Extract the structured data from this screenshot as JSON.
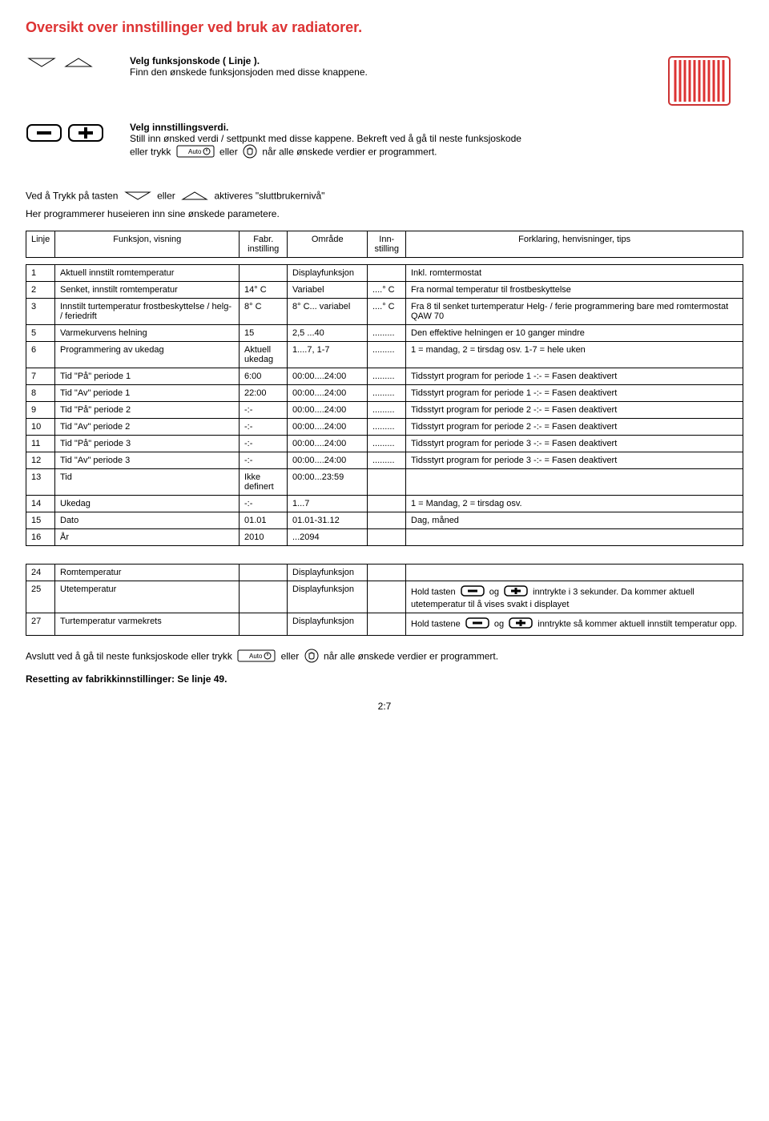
{
  "title": "Oversikt over innstillinger ved bruk av radiatorer.",
  "intro1": {
    "line1": "Velg funksjonskode ( Linje ).",
    "line2": "Finn den ønskede funksjonsjoden med disse knappene."
  },
  "intro2": {
    "l1": "Velg innstillingsverdi.",
    "l2a": "Still inn ønsked verdi / settpunkt med disse kappene. Bekreft ved å gå til neste funksjoskode",
    "l2b": "eller trykk",
    "auto": "Auto",
    "l2c": "eller",
    "l2d": "når alle ønskede verdier er programmert."
  },
  "activation": {
    "p1": "Ved å Trykk på tasten",
    "p2": "eller",
    "p3": "aktiveres \"sluttbrukernivå\""
  },
  "programmer_intro": "Her programmerer huseieren inn sine ønskede parametere.",
  "headers": {
    "linje": "Linje",
    "funksjon": "Funksjon, visning",
    "fabr": "Fabr. instilling",
    "omrade": "Område",
    "inn": "Inn- stilling",
    "forklaring": "Forklaring, henvisninger, tips"
  },
  "rows1": [
    {
      "linje": "1",
      "funksjon": "Aktuell innstilt romtemperatur",
      "fabr": "",
      "omrade": "Displayfunksjon",
      "inn": "",
      "forklaring": "Inkl. romtermostat"
    },
    {
      "linje": "2",
      "funksjon": "Senket, innstilt romtemperatur",
      "fabr": "14° C",
      "omrade": "Variabel",
      "inn": "....° C",
      "forklaring": "Fra normal temperatur til frostbeskyttelse"
    },
    {
      "linje": "3",
      "funksjon": "Innstilt turtemperatur frostbeskyttelse / helg- / feriedrift",
      "fabr": "8° C",
      "omrade": "8° C... variabel",
      "inn": "....° C",
      "forklaring": "Fra 8 til senket turtemperatur Helg- / ferie programmering bare med romtermostat QAW 70"
    },
    {
      "linje": "5",
      "funksjon": "Varmekurvens helning",
      "fabr": "15",
      "omrade": "2,5 ...40",
      "inn": ".........",
      "forklaring": "Den effektive helningen er 10 ganger mindre"
    },
    {
      "linje": "6",
      "funksjon": "Programmering av ukedag",
      "fabr": "Aktuell ukedag",
      "omrade": "1....7,  1-7",
      "inn": ".........",
      "forklaring": "1 = mandag, 2 = tirsdag osv. 1-7 = hele uken"
    },
    {
      "linje": "7",
      "funksjon": "Tid \"På\" periode 1",
      "fabr": "6:00",
      "omrade": "00:00....24:00",
      "inn": ".........",
      "forklaring": "Tidsstyrt program for periode 1 -:- = Fasen deaktivert"
    },
    {
      "linje": "8",
      "funksjon": "Tid \"Av\" periode 1",
      "fabr": "22:00",
      "omrade": "00:00....24:00",
      "inn": ".........",
      "forklaring": "Tidsstyrt program for periode 1 -:- = Fasen deaktivert"
    },
    {
      "linje": "9",
      "funksjon": "Tid \"På\" periode 2",
      "fabr": "-:-",
      "omrade": "00:00....24:00",
      "inn": ".........",
      "forklaring": "Tidsstyrt program for periode 2 -:- = Fasen deaktivert"
    },
    {
      "linje": "10",
      "funksjon": "Tid \"Av\" periode 2",
      "fabr": "-:-",
      "omrade": "00:00....24:00",
      "inn": ".........",
      "forklaring": "Tidsstyrt program for periode 2 -:- = Fasen deaktivert"
    },
    {
      "linje": "11",
      "funksjon": "Tid \"På\" periode 3",
      "fabr": "-:-",
      "omrade": "00:00....24:00",
      "inn": ".........",
      "forklaring": "Tidsstyrt program for periode 3 -:- = Fasen deaktivert"
    },
    {
      "linje": "12",
      "funksjon": "Tid \"Av\" periode 3",
      "fabr": "-:-",
      "omrade": "00:00....24:00",
      "inn": ".........",
      "forklaring": "Tidsstyrt program for periode 3 -:- = Fasen deaktivert"
    },
    {
      "linje": "13",
      "funksjon": "Tid",
      "fabr": "Ikke definert",
      "omrade": "00:00...23:59",
      "inn": "",
      "forklaring": ""
    },
    {
      "linje": "14",
      "funksjon": "Ukedag",
      "fabr": "-:-",
      "omrade": "1...7",
      "inn": "",
      "forklaring": "1 = Mandag, 2 = tirsdag osv."
    },
    {
      "linje": "15",
      "funksjon": "Dato",
      "fabr": "01.01",
      "omrade": "01.01-31.12",
      "inn": "",
      "forklaring": "Dag, måned"
    },
    {
      "linje": "16",
      "funksjon": "År",
      "fabr": "2010",
      "omrade": "...2094",
      "inn": "",
      "forklaring": ""
    }
  ],
  "rows2": [
    {
      "linje": "24",
      "funksjon": "Romtemperatur",
      "fabr": "",
      "omrade": "Displayfunksjon",
      "inn": "",
      "forklaring": ""
    },
    {
      "linje": "25",
      "funksjon": "Utetemperatur",
      "fabr": "",
      "omrade": "Displayfunksjon",
      "inn": "",
      "forklaring_pre": "Hold tasten",
      "forklaring_mid": "og",
      "forklaring_post": "inntrykte i 3 sekunder. Da kommer aktuell utetemperatur til å vises svakt i displayet"
    },
    {
      "linje": "27",
      "funksjon": "Turtemperatur varmekrets",
      "fabr": "",
      "omrade": "Displayfunksjon",
      "inn": "",
      "forklaring_pre": "Hold tastene",
      "forklaring_mid": "og",
      "forklaring_post": "inntrykte så kommer aktuell innstilt temperatur opp."
    }
  ],
  "footer": {
    "p1": "Avslutt ved å gå til neste funksjoskode eller trykk",
    "auto": "Auto",
    "p2": "eller",
    "p3": "når alle ønskede verdier er programmert."
  },
  "reset": "Resetting av fabrikkinnstillinger: Se linje 49.",
  "pagenum": "2:7",
  "colors": {
    "title": "#d33333",
    "heater_border": "#c33",
    "heater_fill": "#f55"
  }
}
